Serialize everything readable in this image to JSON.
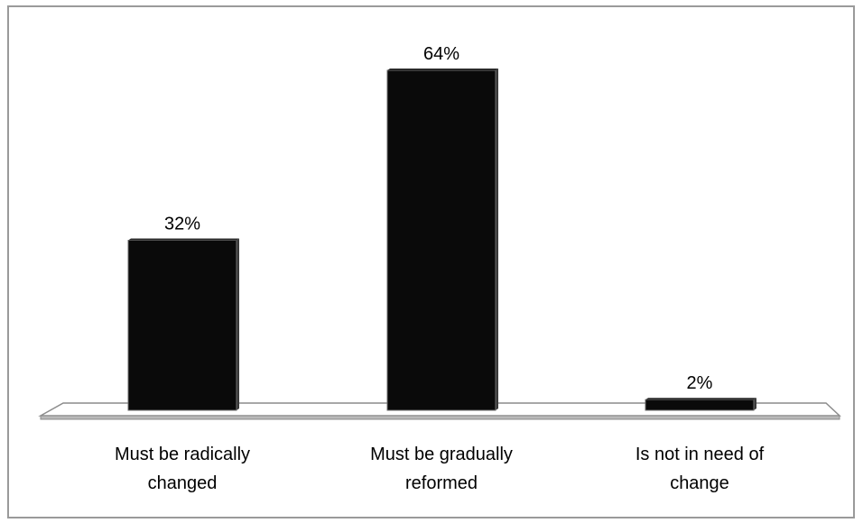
{
  "chart_data": {
    "type": "bar",
    "categories": [
      [
        "Must be radically",
        "changed"
      ],
      [
        "Must be gradually",
        "reformed"
      ],
      [
        "Is not in need of",
        "change"
      ]
    ],
    "values": [
      32,
      64,
      2
    ],
    "data_labels": [
      "32%",
      "64%",
      "2%"
    ],
    "value_unit": "%",
    "title": "",
    "xlabel": "",
    "ylabel": "",
    "ylim": [
      0,
      64
    ],
    "grid": false,
    "legend": "none",
    "colors": {
      "bar": "#0a0a0a",
      "bar_edge": "#6f6f6f",
      "floor_top": "#ffffff",
      "floor_side": "#b9b9b9",
      "floor_edge": "#8c8c8c",
      "frame": "#9a9a9a"
    }
  }
}
